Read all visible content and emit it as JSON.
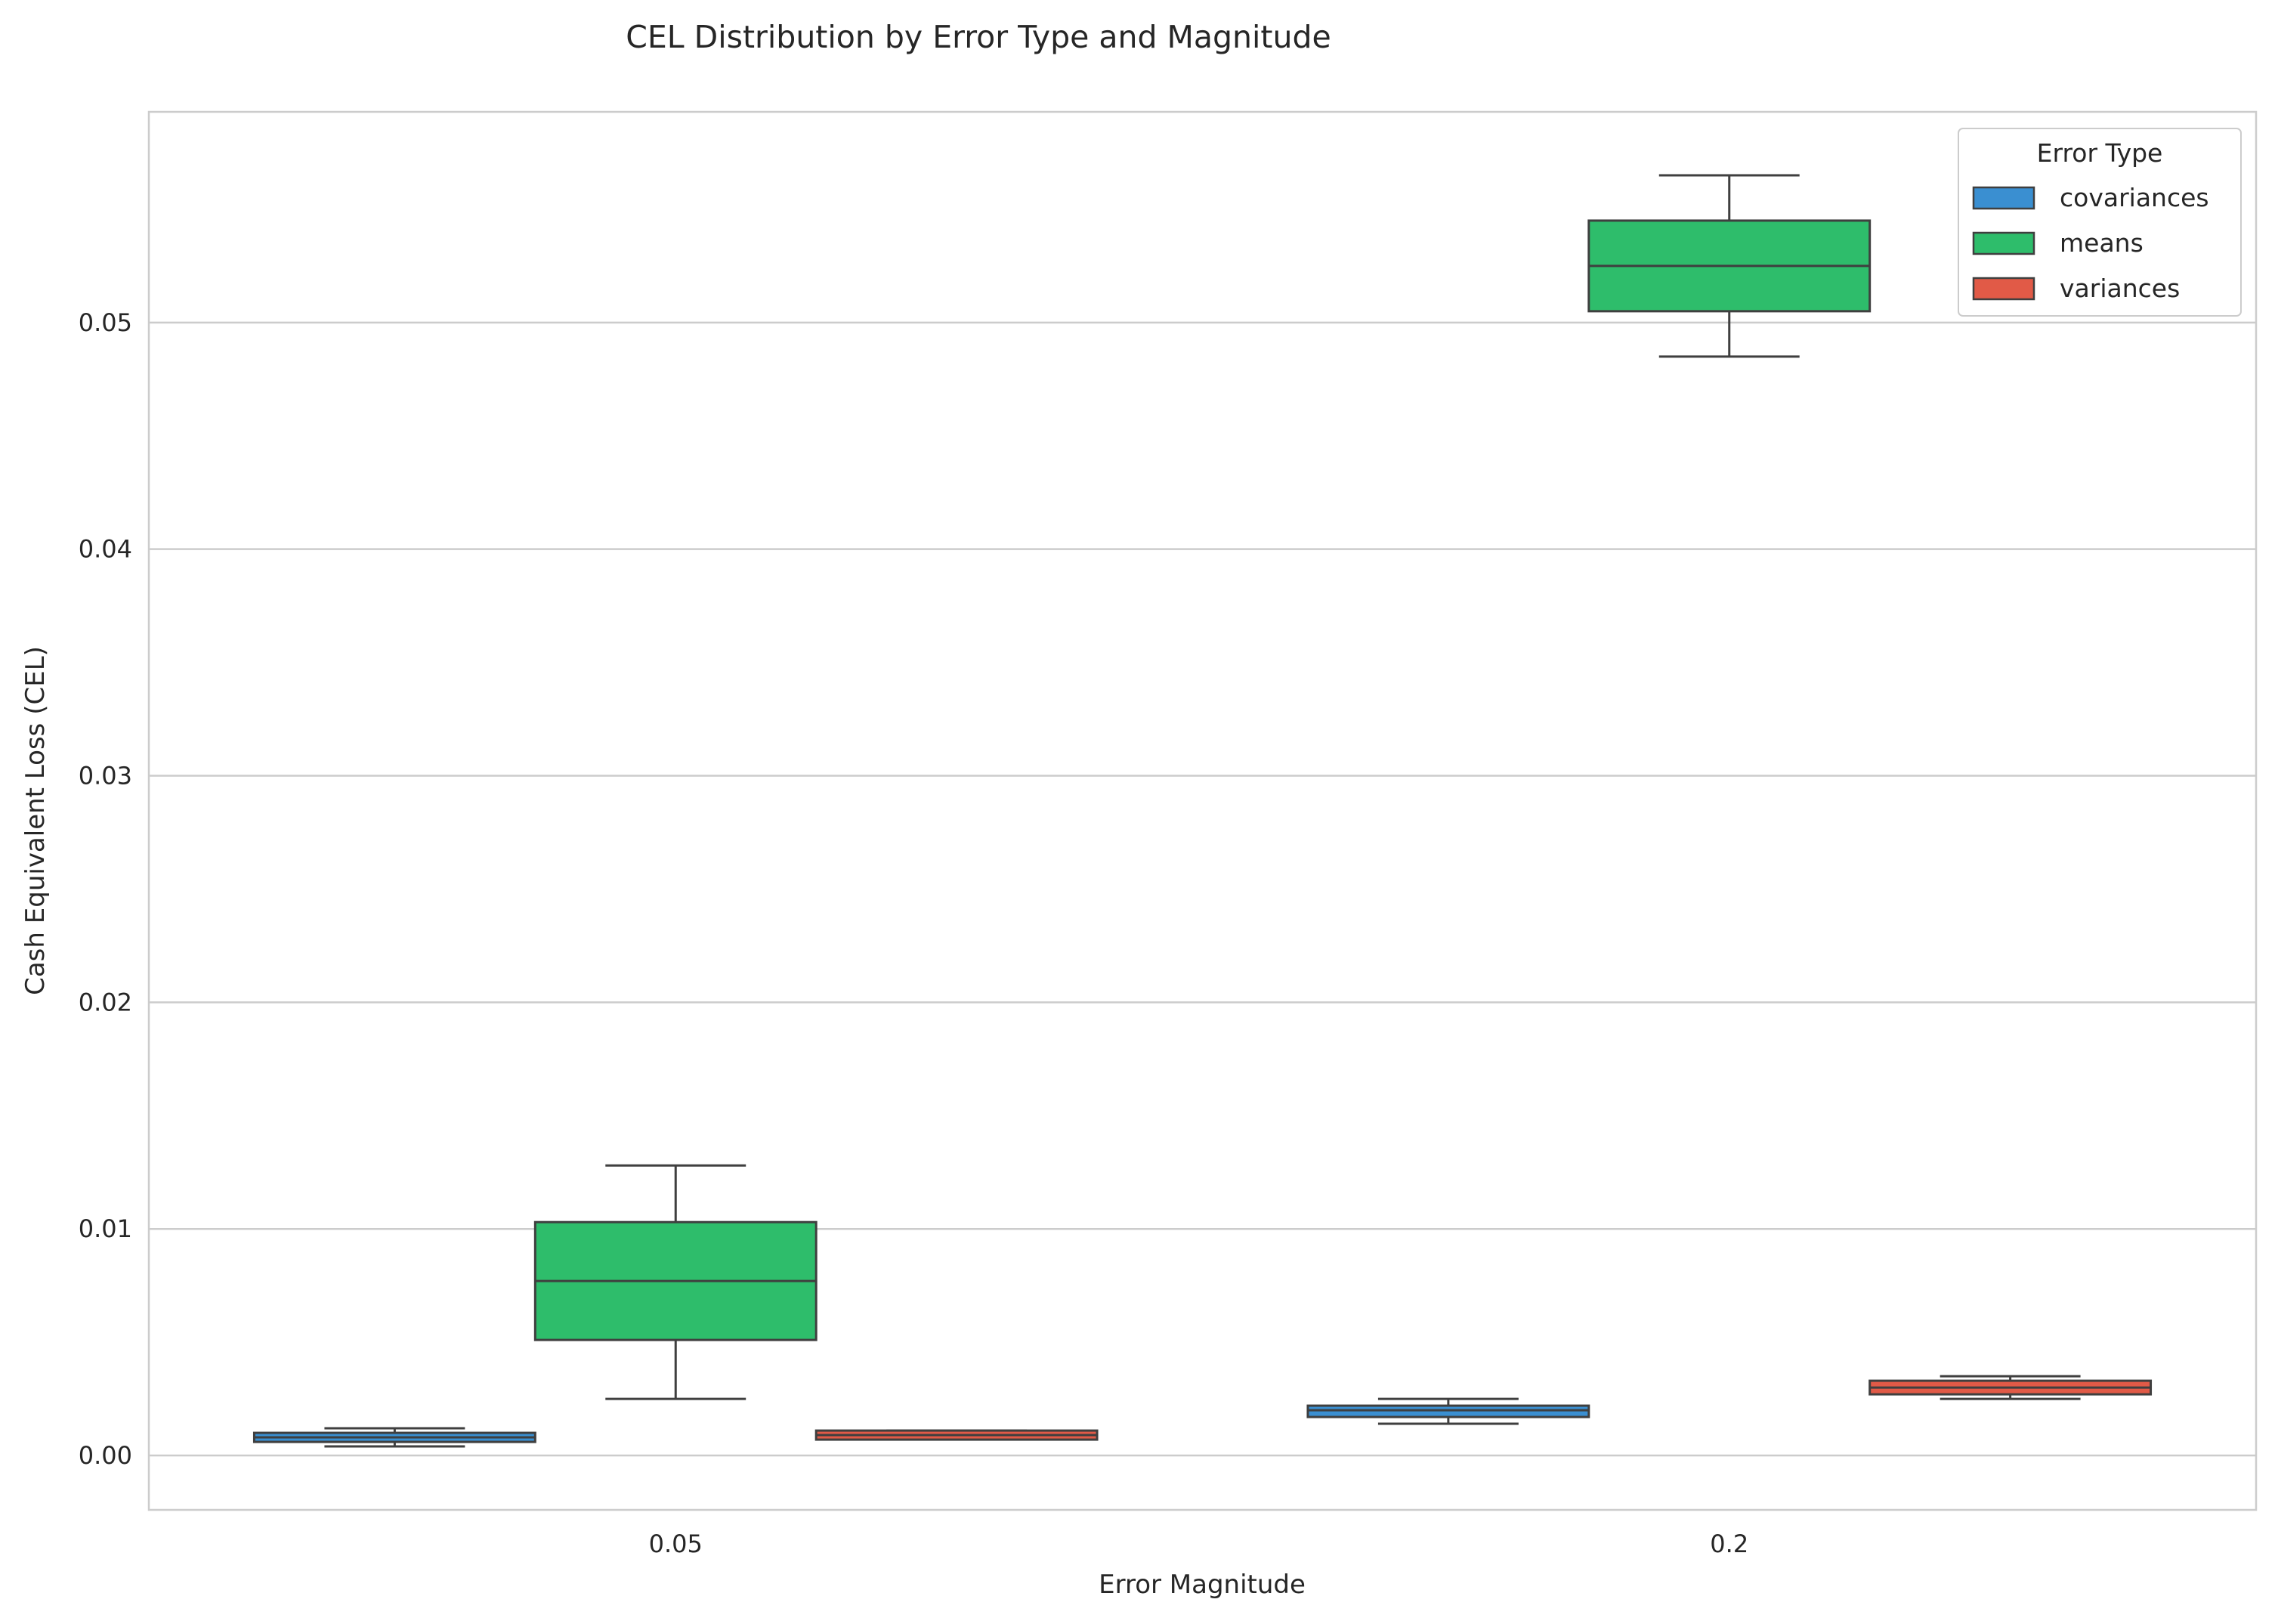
{
  "chart_data": {
    "type": "boxplot",
    "title": "CEL Distribution by Error Type and Magnitude",
    "xlabel": "Error Magnitude",
    "ylabel": "Cash Equivalent Loss (CEL)",
    "categories": [
      "0.05",
      "0.2"
    ],
    "ylim": [
      -0.0024,
      0.0593
    ],
    "yticks": [
      0.0,
      0.01,
      0.02,
      0.03,
      0.04,
      0.05
    ],
    "ytick_labels": [
      "0.00",
      "0.01",
      "0.02",
      "0.03",
      "0.04",
      "0.05"
    ],
    "grid": "horizontal",
    "legend": {
      "title": "Error Type",
      "placement": "top-right"
    },
    "series": [
      {
        "name": "covariances",
        "color": "#3a8fd1",
        "boxes": [
          {
            "category": "0.05",
            "whisker_low": 0.0004,
            "q1": 0.0006,
            "median": 0.0008,
            "q3": 0.001,
            "whisker_high": 0.0012
          },
          {
            "category": "0.2",
            "whisker_low": 0.0014,
            "q1": 0.0017,
            "median": 0.002,
            "q3": 0.0022,
            "whisker_high": 0.0025
          }
        ]
      },
      {
        "name": "means",
        "color": "#2ebd6b",
        "boxes": [
          {
            "category": "0.05",
            "whisker_low": 0.0025,
            "q1": 0.0051,
            "median": 0.0077,
            "q3": 0.0103,
            "whisker_high": 0.0128
          },
          {
            "category": "0.2",
            "whisker_low": 0.0485,
            "q1": 0.0505,
            "median": 0.0525,
            "q3": 0.0545,
            "whisker_high": 0.0565
          }
        ]
      },
      {
        "name": "variances",
        "color": "#e15a47",
        "boxes": [
          {
            "category": "0.05",
            "whisker_low": 0.0007,
            "q1": 0.0007,
            "median": 0.0009,
            "q3": 0.0011,
            "whisker_high": 0.0011
          },
          {
            "category": "0.2",
            "whisker_low": 0.0025,
            "q1": 0.0027,
            "median": 0.003,
            "q3": 0.0033,
            "whisker_high": 0.0035
          }
        ]
      }
    ]
  }
}
